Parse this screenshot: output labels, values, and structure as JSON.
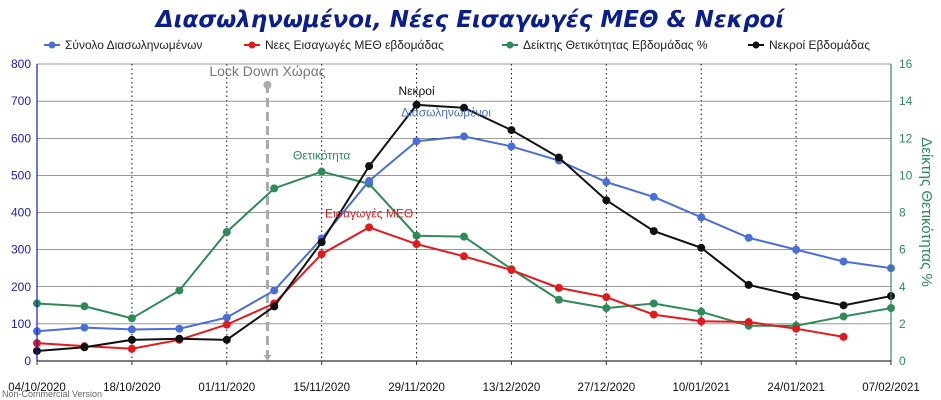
{
  "chart_data": {
    "type": "line",
    "title": "Διασωληνωμένοι, Νέες Εισαγωγές ΜΕΘ & Νεκροί",
    "x_dates": [
      "04/10/2020",
      "11/10/2020",
      "18/10/2020",
      "25/10/2020",
      "01/11/2020",
      "08/11/2020",
      "15/11/2020",
      "22/11/2020",
      "29/11/2020",
      "06/12/2020",
      "13/12/2020",
      "20/12/2020",
      "27/12/2020",
      "03/01/2021",
      "10/01/2021",
      "17/01/2021",
      "24/01/2021",
      "31/01/2021",
      "07/02/2021"
    ],
    "x_tick_labels": [
      "04/10/2020",
      "18/10/2020",
      "01/11/2020",
      "15/11/2020",
      "29/11/2020",
      "13/12/2020",
      "27/12/2020",
      "10/01/2021",
      "24/01/2021",
      "07/02/2021"
    ],
    "y_left": {
      "min": 0,
      "max": 800,
      "ticks": [
        "0",
        "100",
        "200",
        "300",
        "400",
        "500",
        "600",
        "700",
        "800"
      ]
    },
    "y_right": {
      "min": 0,
      "max": 16,
      "ticks": [
        "0",
        "2",
        "4",
        "6",
        "8",
        "10",
        "12",
        "14",
        "16"
      ],
      "label": "Δείκτης Θετικότητας %"
    },
    "grid": {
      "horizontal": true,
      "vertical_dotted": true
    },
    "legend_placement": "top",
    "series": [
      {
        "name": "Σύνολο Διασωληνωμένων",
        "axis": "left",
        "color": "#4a6fd8",
        "values": [
          80,
          90,
          85,
          87,
          117,
          190,
          330,
          485,
          592,
          605,
          578,
          540,
          482,
          442,
          387,
          332,
          300,
          268,
          250
        ]
      },
      {
        "name": "Νεες Εισαγωγές ΜΕΘ εβδομάδας",
        "axis": "left",
        "color": "#e31a1c",
        "values": [
          48,
          40,
          33,
          57,
          98,
          155,
          288,
          360,
          315,
          282,
          245,
          197,
          172,
          125,
          107,
          105,
          87,
          65,
          null
        ]
      },
      {
        "name": "Δείκτης Θετικότητας Εβδομάδας %",
        "axis": "right",
        "color": "#2e8b57",
        "values": [
          3.1,
          2.95,
          2.3,
          3.8,
          6.95,
          9.3,
          10.2,
          9.55,
          6.75,
          6.7,
          4.95,
          3.3,
          2.85,
          3.1,
          2.65,
          1.9,
          1.9,
          2.4,
          2.85
        ]
      },
      {
        "name": "Νεκροί Εβδομάδας",
        "axis": "left",
        "color": "#111111",
        "values": [
          27,
          37,
          57,
          60,
          57,
          147,
          320,
          525,
          690,
          682,
          622,
          548,
          433,
          350,
          305,
          205,
          175,
          150,
          175
        ]
      }
    ],
    "annotations": [
      {
        "text": "Lock Down Χώρας",
        "at_date": "07/11/2020"
      },
      {
        "text": "Νεκροί",
        "series": "Νεκροί Εβδομάδας"
      },
      {
        "text": "Διασωληνωμένοι",
        "series": "Σύνολο Διασωληνωμένων"
      },
      {
        "text": "Θετικότητα",
        "series": "Δείκτης Θετικότητας Εβδομάδας %"
      },
      {
        "text": "Εισαγωγές ΜΕΘ",
        "series": "Νεες Εισαγωγές ΜΕΘ εβδομάδας"
      }
    ],
    "footer": "Non-Commercial Version"
  }
}
